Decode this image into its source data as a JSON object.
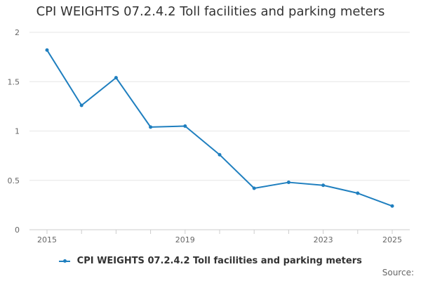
{
  "chart_data": {
    "type": "line",
    "title": "CPI WEIGHTS 07.2.4.2 Toll facilities and parking meters",
    "x": [
      2015,
      2016,
      2017,
      2018,
      2019,
      2020,
      2021,
      2022,
      2023,
      2024,
      2025
    ],
    "x_tick_labels": [
      "2015",
      "2019",
      "2023",
      "2025"
    ],
    "y_tick_labels": [
      "0",
      "0.5",
      "1",
      "1.5",
      "2"
    ],
    "ylim": [
      0,
      2
    ],
    "grid": true,
    "legend_position": "bottom",
    "series": [
      {
        "name": "CPI WEIGHTS 07.2.4.2 Toll facilities and parking meters",
        "color": "#1f7fbf",
        "values": [
          1.82,
          1.26,
          1.54,
          1.04,
          1.05,
          0.76,
          0.42,
          0.48,
          0.45,
          0.37,
          0.24
        ]
      }
    ]
  },
  "footer": {
    "source_label": "Source:"
  }
}
